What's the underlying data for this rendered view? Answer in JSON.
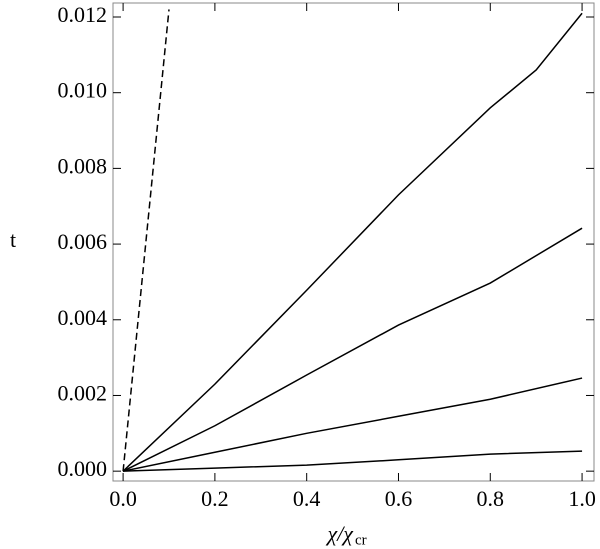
{
  "chart_data": {
    "type": "line",
    "y_label": "t",
    "x_label": "χ/χ",
    "x_label_sub": "cr",
    "xlim": [
      -0.022,
      1.026
    ],
    "ylim": [
      -0.00026,
      0.01237
    ],
    "xticks": [
      {
        "value": 0,
        "label": "0.0"
      },
      {
        "value": 0.2,
        "label": "0.2"
      },
      {
        "value": 0.4,
        "label": "0.4"
      },
      {
        "value": 0.6,
        "label": "0.6"
      },
      {
        "value": 0.8,
        "label": "0.8"
      },
      {
        "value": 1,
        "label": "1.0"
      }
    ],
    "yticks": [
      {
        "value": 0,
        "label": "0.000"
      },
      {
        "value": 0.002,
        "label": "0.002"
      },
      {
        "value": 0.004,
        "label": "0.004"
      },
      {
        "value": 0.006,
        "label": "0.006"
      },
      {
        "value": 0.008,
        "label": "0.008"
      },
      {
        "value": 0.01,
        "label": "0.010"
      },
      {
        "value": 0.012,
        "label": "0.012"
      }
    ],
    "series": [
      {
        "color": "#000000",
        "dash": true,
        "x": [
          0,
          0.1
        ],
        "values": [
          0,
          0.0122
        ]
      },
      {
        "color": "#000000",
        "x": [
          0,
          0.2,
          0.4,
          0.6,
          0.8,
          0.9,
          1.0
        ],
        "values": [
          0,
          0.0023,
          0.00478,
          0.0073,
          0.0096,
          0.0106,
          0.0121
        ]
      },
      {
        "color": "#000000",
        "x": [
          0,
          0.2,
          0.4,
          0.6,
          0.8,
          1.0
        ],
        "values": [
          0,
          0.0012,
          0.00254,
          0.00386,
          0.00497,
          0.00642
        ]
      },
      {
        "color": "#000000",
        "x": [
          0,
          0.2,
          0.4,
          0.6,
          0.8,
          1.0
        ],
        "values": [
          0,
          0.0005,
          0.001,
          0.00145,
          0.0019,
          0.00246
        ]
      },
      {
        "color": "#000000",
        "x": [
          0,
          0.2,
          0.4,
          0.6,
          0.8,
          1.0
        ],
        "values": [
          0,
          8e-05,
          0.00016,
          0.0003,
          0.00045,
          0.00053
        ]
      }
    ]
  }
}
